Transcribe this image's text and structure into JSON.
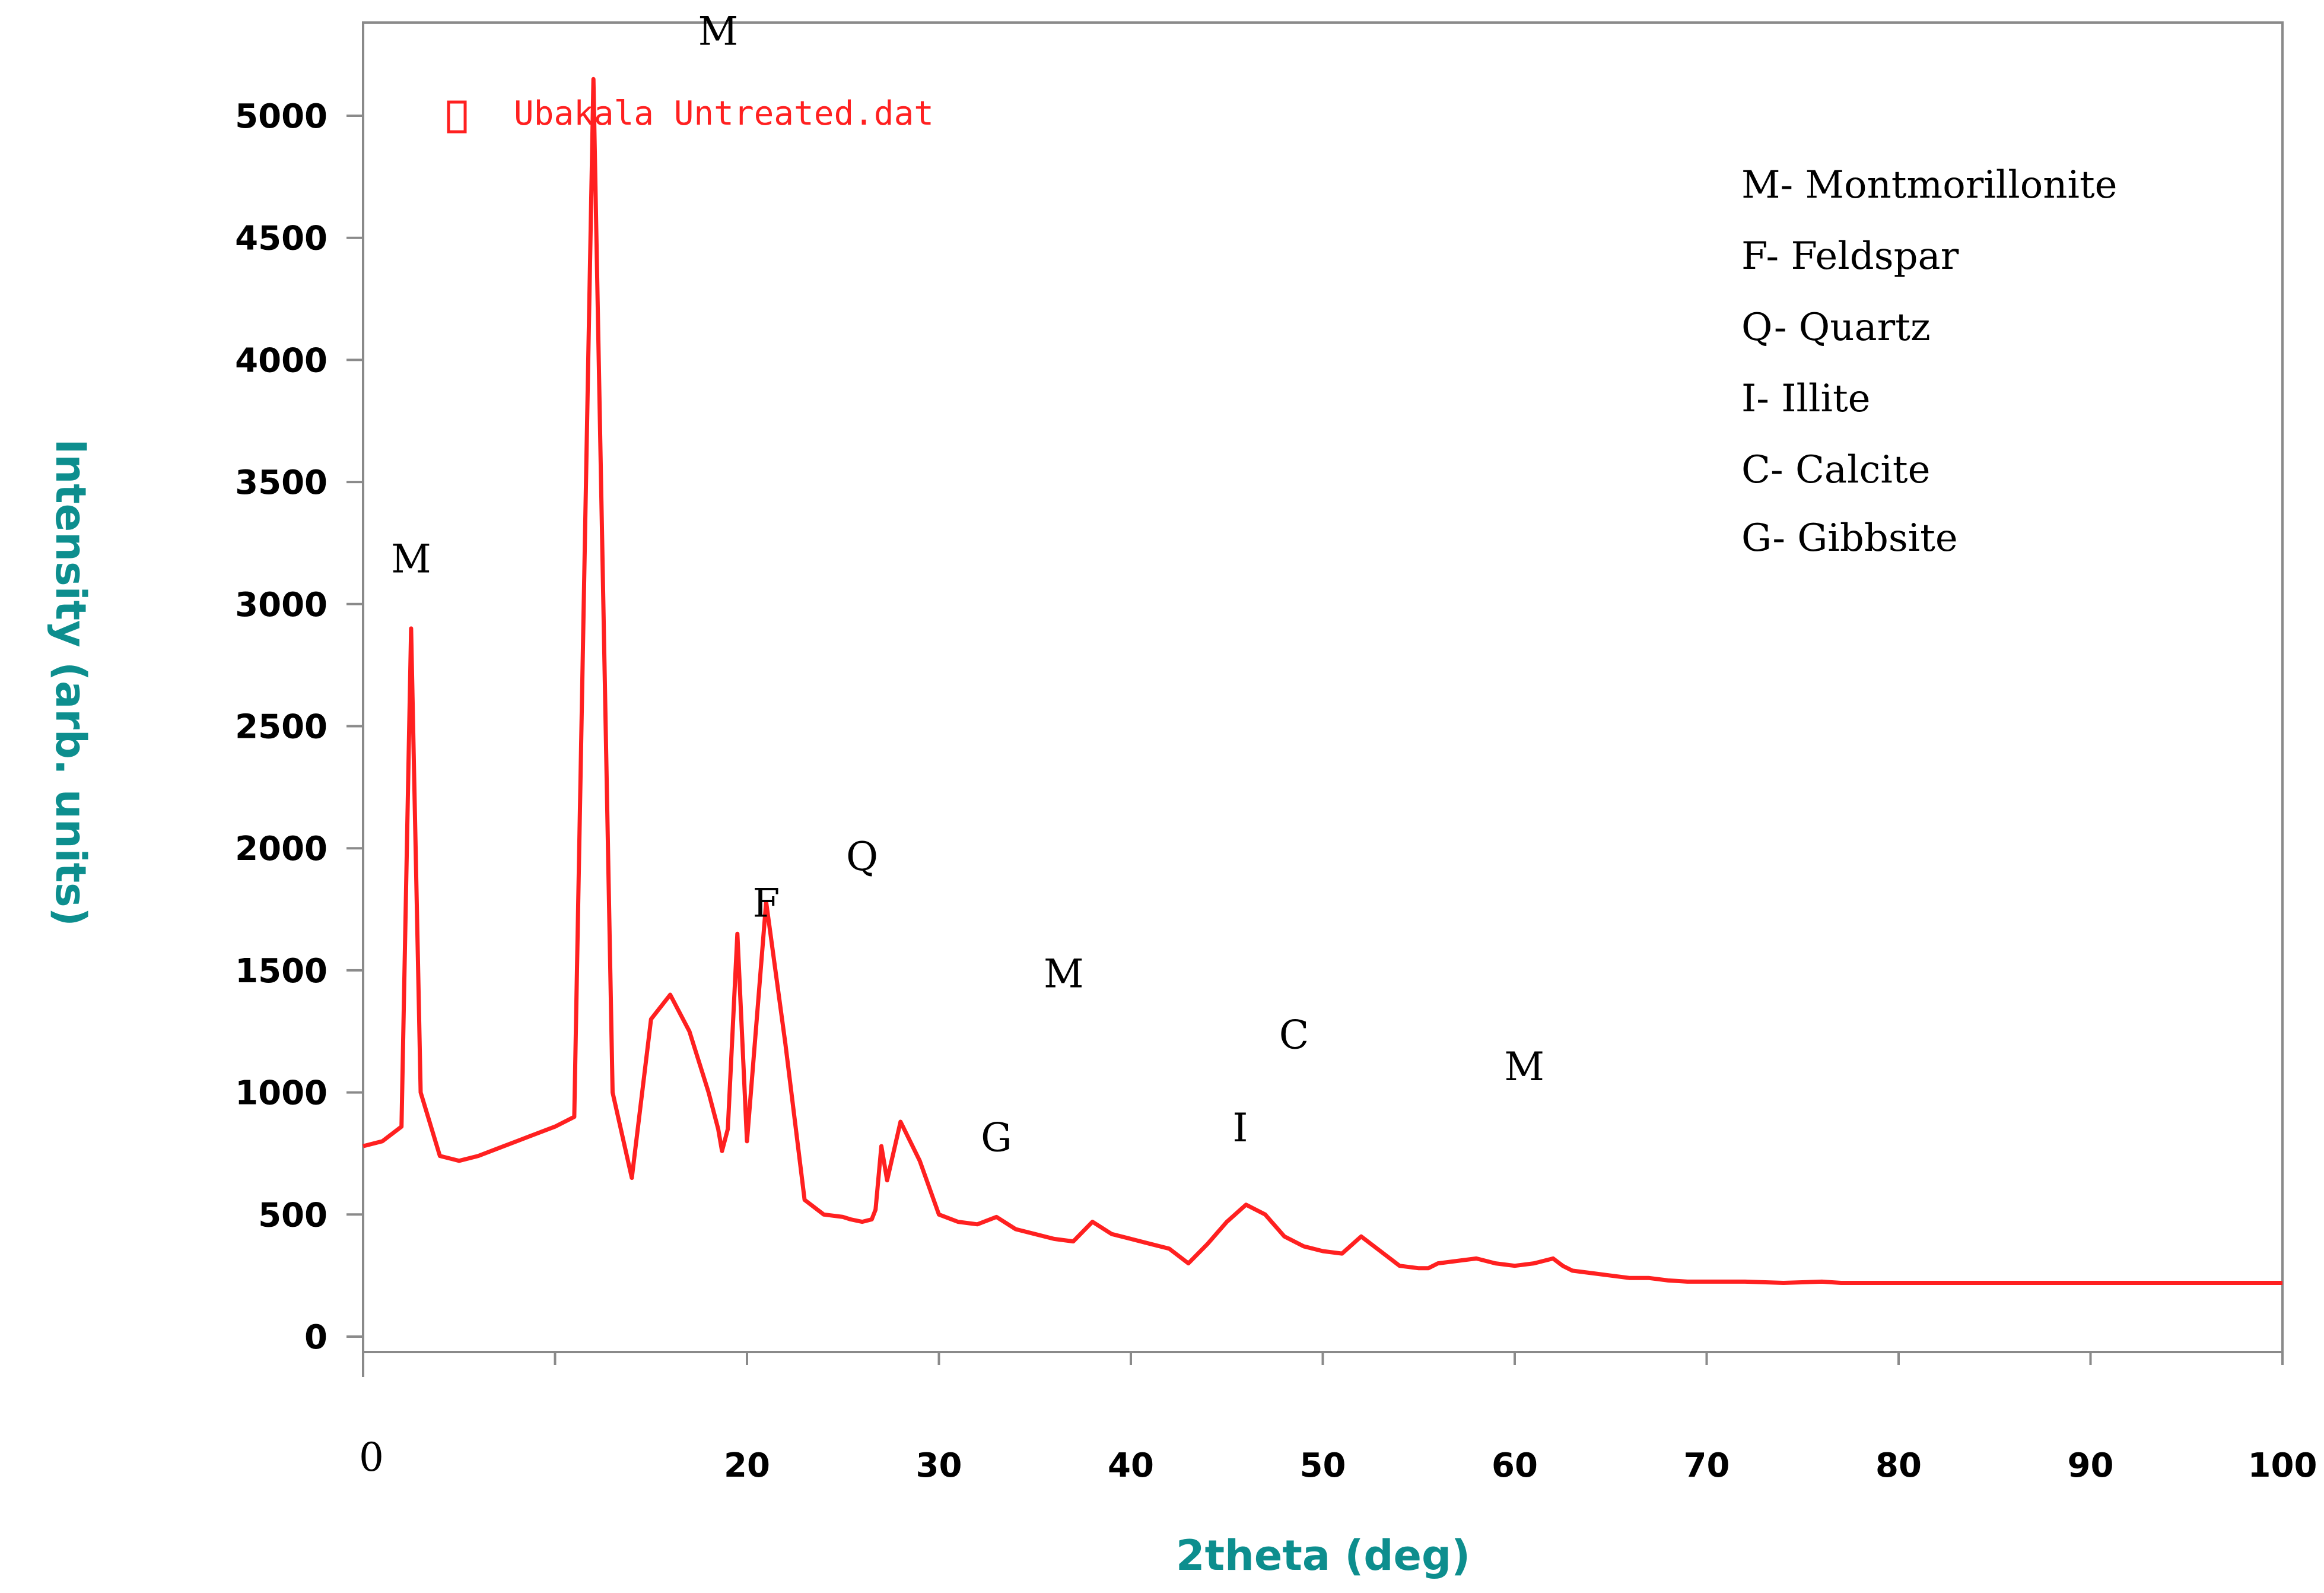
{
  "chart_data": {
    "type": "line",
    "xlabel": "2theta (deg)",
    "ylabel": "Intensity (arb. units)",
    "xlim": [
      0,
      100
    ],
    "ylim": [
      -50,
      5500
    ],
    "xticks": [
      "0",
      "20",
      "30",
      "40",
      "50",
      "60",
      "70",
      "80",
      "90",
      "100"
    ],
    "yticks": [
      "0",
      "500",
      "1000",
      "1500",
      "2000",
      "2500",
      "3000",
      "3500",
      "4000",
      "4500",
      "5000"
    ],
    "legend": {
      "label": "Ubakala Untreated.dat",
      "color": "#ff2020",
      "placement": "top-left"
    },
    "series": [
      {
        "name": "Ubakala Untreated.dat",
        "color": "#ff2020",
        "x": [
          0,
          1,
          2,
          2.5,
          3,
          4,
          5,
          6,
          7,
          8,
          9,
          10,
          11,
          12,
          13,
          14,
          15,
          16,
          17,
          18,
          18.5,
          18.7,
          19.0,
          19.5,
          20,
          21,
          22,
          23,
          24,
          25,
          25.4,
          26,
          26.5,
          26.7,
          27,
          27.3,
          28,
          29,
          30,
          31,
          32,
          33,
          34,
          35,
          36,
          37,
          38,
          39,
          40,
          41,
          42,
          43,
          44,
          45,
          46,
          47,
          48,
          49,
          50,
          51,
          52,
          53,
          54,
          55,
          55.5,
          56,
          57,
          58,
          59,
          60,
          61,
          62,
          62.5,
          63,
          64,
          65,
          66,
          67,
          68,
          69,
          70,
          72,
          74,
          76,
          77,
          78,
          80,
          82,
          84,
          86,
          88,
          90,
          92,
          94,
          96,
          98,
          100
        ],
        "y": [
          780,
          800,
          860,
          2900,
          1000,
          740,
          720,
          740,
          770,
          800,
          830,
          860,
          900,
          5150,
          1000,
          650,
          1300,
          1400,
          1250,
          1000,
          850,
          760,
          850,
          1650,
          800,
          1780,
          1200,
          560,
          500,
          490,
          480,
          470,
          480,
          520,
          780,
          640,
          880,
          720,
          500,
          470,
          460,
          490,
          440,
          420,
          400,
          390,
          470,
          420,
          400,
          380,
          360,
          300,
          380,
          470,
          540,
          500,
          410,
          370,
          350,
          340,
          410,
          350,
          290,
          280,
          280,
          300,
          310,
          320,
          300,
          290,
          300,
          320,
          290,
          270,
          260,
          250,
          240,
          240,
          230,
          225,
          225,
          225,
          220,
          225,
          220,
          220,
          220,
          220,
          220,
          220,
          220,
          220,
          220,
          220,
          220,
          220,
          220
        ]
      }
    ],
    "peak_labels": [
      {
        "text": "M",
        "x": 2.5,
        "y": 3130
      },
      {
        "text": "M",
        "x": 18.5,
        "y": 5290
      },
      {
        "text": "F",
        "x": 21.0,
        "y": 1720
      },
      {
        "text": "Q",
        "x": 26.0,
        "y": 1910
      },
      {
        "text": "G",
        "x": 33.0,
        "y": 760
      },
      {
        "text": "M",
        "x": 36.5,
        "y": 1430
      },
      {
        "text": "I",
        "x": 45.7,
        "y": 800
      },
      {
        "text": "C",
        "x": 48.5,
        "y": 1180
      },
      {
        "text": "M",
        "x": 60.5,
        "y": 1050
      }
    ],
    "key": [
      "M- Montmorillonite",
      "F- Feldspar",
      "Q- Quartz",
      "I- Illite",
      "C- Calcite",
      "G- Gibbsite"
    ]
  }
}
